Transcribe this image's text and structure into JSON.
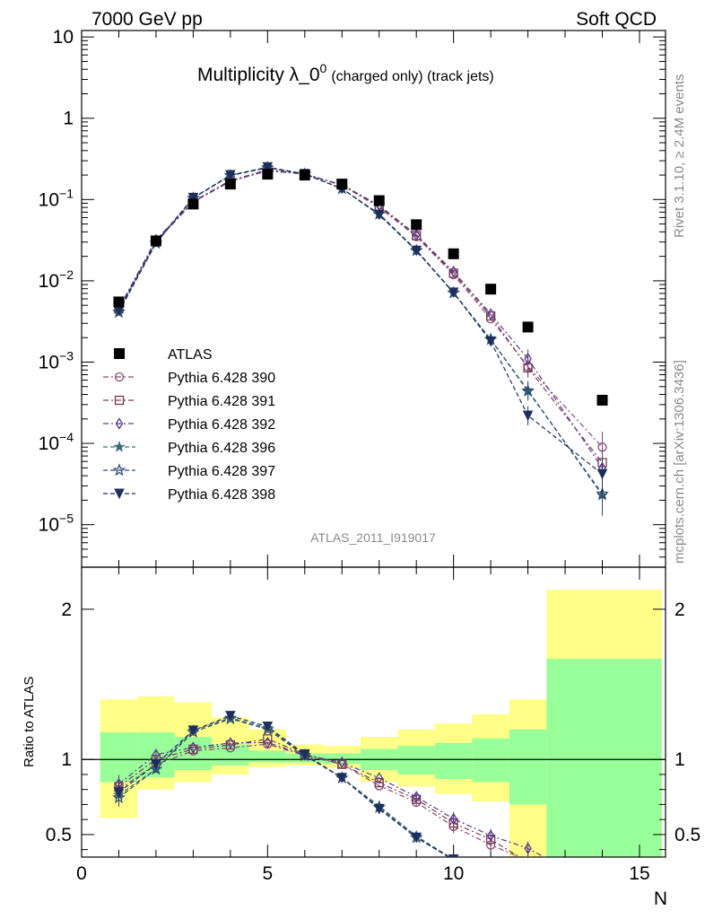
{
  "chart_data": [
    {
      "panel": "main",
      "type": "scatter",
      "header_left": "7000 GeV pp",
      "header_right": "Soft QCD",
      "title": "Multiplicity λ_0⁰ (charged only) (track jets)",
      "title_main": "Multiplicity λ_0",
      "title_sup": "0",
      "title_sub": "(charged only) (track jets)",
      "analysis_label": "ATLAS_2011_I919017",
      "side_label_top": "Rivet 3.1.10, ≥ 2.4M events",
      "side_label_bottom": "mcplots.cern.ch [arXiv:1306.3436]",
      "yscale": "log",
      "ylim": [
        3e-06,
        12
      ],
      "xlim": [
        0,
        15.7
      ],
      "legend_position": "lower-left",
      "yticks": [
        {
          "value": 10,
          "base": "10",
          "exp": ""
        },
        {
          "value": 1,
          "base": "1",
          "exp": ""
        },
        {
          "value": 0.1,
          "base": "10",
          "exp": "−1"
        },
        {
          "value": 0.01,
          "base": "10",
          "exp": "−2"
        },
        {
          "value": 0.001,
          "base": "10",
          "exp": "−3"
        },
        {
          "value": 0.0001,
          "base": "10",
          "exp": "−4"
        },
        {
          "value": 1e-05,
          "base": "10",
          "exp": "−5"
        }
      ],
      "x": [
        1,
        2,
        3,
        4,
        5,
        6,
        7,
        8,
        9,
        10,
        11,
        12,
        14
      ],
      "data": {
        "name": "ATLAS",
        "values": [
          0.0055,
          0.031,
          0.088,
          0.155,
          0.205,
          0.2,
          0.155,
          0.097,
          0.049,
          0.0215,
          0.0079,
          0.0027,
          0.00034
        ],
        "color": "#000000"
      },
      "series": [
        {
          "name": "Pythia 6.428 390",
          "marker": "circle",
          "color": "#8b4a78",
          "dash": "6 3 2 3",
          "values": [
            0.0044,
            0.03,
            0.093,
            0.167,
            0.226,
            0.205,
            0.15,
            0.08,
            0.035,
            0.0119,
            0.0034,
            0.00088,
            9e-05
          ]
        },
        {
          "name": "Pythia 6.428 391",
          "marker": "square",
          "color": "#7a3a55",
          "dash": "6 3 2 3",
          "values": [
            0.0045,
            0.031,
            0.094,
            0.17,
            0.233,
            0.207,
            0.15,
            0.082,
            0.036,
            0.0124,
            0.0037,
            0.00085,
            5.8e-05
          ]
        },
        {
          "name": "Pythia 6.428 392",
          "marker": "diamond",
          "color": "#5a3a88",
          "dash": "6 3 2 3",
          "values": [
            0.0046,
            0.032,
            0.095,
            0.172,
            0.228,
            0.206,
            0.152,
            0.085,
            0.0368,
            0.013,
            0.0039,
            0.0011,
            5e-05
          ]
        },
        {
          "name": "Pythia 6.428 396",
          "marker": "star",
          "color": "#3d6a7a",
          "dash": "5 3",
          "values": [
            0.0042,
            0.029,
            0.105,
            0.198,
            0.248,
            0.206,
            0.136,
            0.067,
            0.024,
            0.0072,
            0.0019,
            0.00045,
            2.3e-05
          ]
        },
        {
          "name": "Pythia 6.428 397",
          "marker": "star-open",
          "color": "#2c4a6e",
          "dash": "5 3",
          "values": [
            0.0041,
            0.029,
            0.104,
            0.197,
            0.246,
            0.205,
            0.136,
            0.066,
            0.0235,
            0.0071,
            0.0019,
            0.00044,
            2.4e-05
          ]
        },
        {
          "name": "Pythia 6.428 398",
          "marker": "triangle-down",
          "color": "#1e2f5c",
          "dash": "5 3",
          "values": [
            0.0043,
            0.03,
            0.105,
            0.2,
            0.25,
            0.207,
            0.136,
            0.065,
            0.0235,
            0.0072,
            0.0018,
            0.00022,
            4.2e-05
          ]
        }
      ]
    },
    {
      "panel": "ratio",
      "type": "line",
      "ylabel": "Ratio to ATLAS",
      "xlabel": "N",
      "ylim": [
        0.35,
        2.28
      ],
      "xlim": [
        0,
        15.7
      ],
      "xticks": [
        0,
        5,
        10,
        15
      ],
      "yticks": [
        0.5,
        1,
        2
      ],
      "reference": 1,
      "band_colors": {
        "outer": "#ffff88",
        "inner": "#99ff99"
      },
      "bands": [
        {
          "x0": 0.5,
          "x1": 1.5,
          "outer": [
            0.61,
            1.4
          ],
          "inner": [
            0.85,
            1.18
          ]
        },
        {
          "x0": 1.5,
          "x1": 2.5,
          "outer": [
            0.8,
            1.42
          ],
          "inner": [
            0.88,
            1.18
          ]
        },
        {
          "x0": 2.5,
          "x1": 3.5,
          "outer": [
            0.85,
            1.38
          ],
          "inner": [
            0.93,
            1.15
          ]
        },
        {
          "x0": 3.5,
          "x1": 4.5,
          "outer": [
            0.9,
            1.28
          ],
          "inner": [
            0.96,
            1.1
          ]
        },
        {
          "x0": 4.5,
          "x1": 5.5,
          "outer": [
            0.95,
            1.2
          ],
          "inner": [
            0.98,
            1.06
          ]
        },
        {
          "x0": 5.5,
          "x1": 6.5,
          "outer": [
            0.96,
            1.1
          ],
          "inner": [
            0.98,
            1.04
          ]
        },
        {
          "x0": 6.5,
          "x1": 7.5,
          "outer": [
            0.94,
            1.09
          ],
          "inner": [
            0.97,
            1.04
          ]
        },
        {
          "x0": 7.5,
          "x1": 8.5,
          "outer": [
            0.85,
            1.15
          ],
          "inner": [
            0.93,
            1.07
          ]
        },
        {
          "x0": 8.5,
          "x1": 9.5,
          "outer": [
            0.82,
            1.2
          ],
          "inner": [
            0.9,
            1.09
          ]
        },
        {
          "x0": 9.5,
          "x1": 10.5,
          "outer": [
            0.77,
            1.24
          ],
          "inner": [
            0.87,
            1.11
          ]
        },
        {
          "x0": 10.5,
          "x1": 11.5,
          "outer": [
            0.72,
            1.3
          ],
          "inner": [
            0.85,
            1.14
          ]
        },
        {
          "x0": 11.5,
          "x1": 12.5,
          "outer": [
            0.1,
            1.4
          ],
          "inner": [
            0.7,
            1.2
          ]
        },
        {
          "x0": 12.5,
          "x1": 15.6,
          "outer": [
            0.1,
            2.13
          ],
          "inner": [
            0.1,
            1.67
          ]
        }
      ]
    }
  ]
}
